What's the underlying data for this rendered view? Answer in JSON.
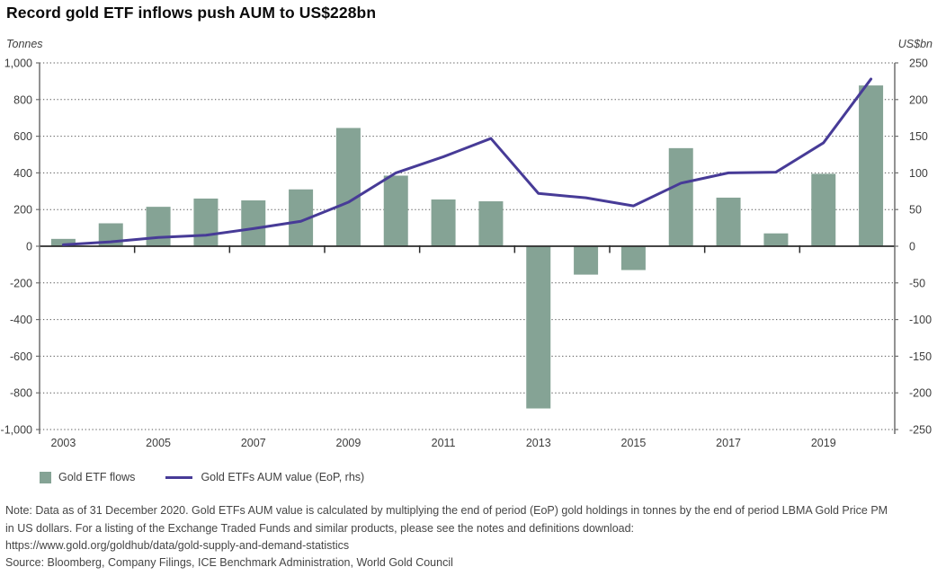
{
  "title": "Record gold ETF inflows push AUM to US$228bn",
  "left_axis": {
    "title": "Tonnes",
    "ticks": [
      {
        "value": 1000,
        "label": "1,000"
      },
      {
        "value": 800,
        "label": "800"
      },
      {
        "value": 600,
        "label": "600"
      },
      {
        "value": 400,
        "label": "400"
      },
      {
        "value": 200,
        "label": "200"
      },
      {
        "value": 0,
        "label": "0"
      },
      {
        "value": -200,
        "label": "-200"
      },
      {
        "value": -400,
        "label": "-400"
      },
      {
        "value": -600,
        "label": "-600"
      },
      {
        "value": -800,
        "label": "-800"
      },
      {
        "value": -1000,
        "label": "-1,000"
      }
    ]
  },
  "right_axis": {
    "title": "US$bn",
    "ticks": [
      {
        "value": 250,
        "label": "250"
      },
      {
        "value": 200,
        "label": "200"
      },
      {
        "value": 150,
        "label": "150"
      },
      {
        "value": 100,
        "label": "100"
      },
      {
        "value": 50,
        "label": "50"
      },
      {
        "value": 0,
        "label": "0"
      },
      {
        "value": -50,
        "label": "-50"
      },
      {
        "value": -100,
        "label": "-100"
      },
      {
        "value": -150,
        "label": "-150"
      },
      {
        "value": -200,
        "label": "-200"
      },
      {
        "value": -250,
        "label": "-250"
      }
    ]
  },
  "legend": [
    {
      "label": "Gold ETF flows",
      "type": "bar"
    },
    {
      "label": "Gold ETFs AUM value (EoP, rhs)",
      "type": "line"
    }
  ],
  "note": "Note: Data as of 31 December 2020. Gold ETFs AUM value is calculated by multiplying the end of period (EoP) gold holdings in tonnes by the end of period LBMA Gold Price PM in US dollars. For a listing of the Exchange Traded Funds and similar products, please see the notes and definitions download:",
  "note_url": "https://www.gold.org/goldhub/data/gold-supply-and-demand-statistics",
  "source": "Source: Bloomberg, Company Filings, ICE Benchmark Administration, World Gold Council",
  "colors": {
    "bar": "#85a395",
    "line": "#473b97",
    "gridline": "#555555",
    "zero_line": "#2b2b2b",
    "axis_line": "#6e6e6e",
    "tick_text": "#3d3d3d"
  },
  "chart_data": {
    "type": "bar+line",
    "title": "Record gold ETF inflows push AUM to US$228bn",
    "categories": [
      "2003",
      "2004",
      "2005",
      "2006",
      "2007",
      "2008",
      "2009",
      "2010",
      "2011",
      "2012",
      "2013",
      "2014",
      "2015",
      "2016",
      "2017",
      "2018",
      "2019",
      "2020"
    ],
    "series": [
      {
        "name": "Gold ETF flows",
        "type": "bar",
        "axis": "left",
        "unit": "Tonnes",
        "values": [
          40,
          125,
          215,
          260,
          250,
          310,
          645,
          385,
          255,
          245,
          -885,
          -155,
          -130,
          535,
          265,
          70,
          395,
          877
        ]
      },
      {
        "name": "Gold ETFs AUM value (EoP, rhs)",
        "type": "line",
        "axis": "right",
        "unit": "US$bn",
        "values": [
          2,
          6,
          12,
          15,
          24,
          34,
          60,
          100,
          122,
          147,
          72,
          66,
          55,
          86,
          100,
          101,
          141,
          228
        ]
      }
    ],
    "x_tick_labels": [
      "2003",
      "2005",
      "2007",
      "2009",
      "2011",
      "2013",
      "2015",
      "2017",
      "2019"
    ],
    "left_ylim": [
      -1000,
      1000
    ],
    "right_ylim": [
      -250,
      250
    ],
    "left_tick_step": 200,
    "right_tick_step": 50,
    "grid": "dotted horizontal",
    "legend_position": "bottom-left"
  }
}
